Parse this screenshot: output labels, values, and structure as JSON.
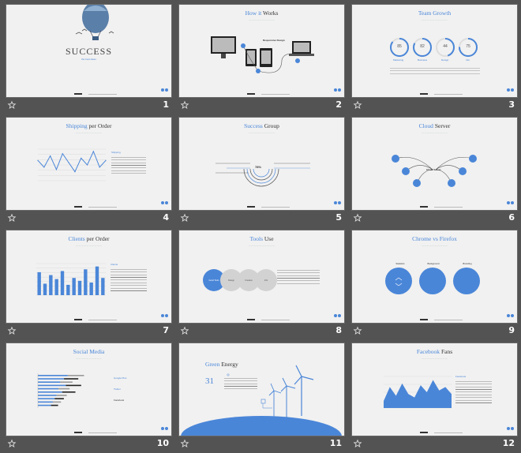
{
  "slides": [
    {
      "number": "1",
      "title": "SUCCESS",
      "tagline": "the best ideas"
    },
    {
      "number": "2",
      "title_a": "How ",
      "title_b": "it",
      "title_c": " Works",
      "label": "Responsive Design"
    },
    {
      "number": "3",
      "title_a": "Team ",
      "title_b": "Growth",
      "stats": [
        {
          "value": "85",
          "label": "Marketing"
        },
        {
          "value": "82",
          "label": "Business"
        },
        {
          "value": "44",
          "label": "Design"
        },
        {
          "value": "75",
          "label": "Info"
        }
      ]
    },
    {
      "number": "4",
      "title_a": "Shipping ",
      "title_b": "per Order",
      "side_title": "Shipping"
    },
    {
      "number": "5",
      "title_a": "Success ",
      "title_b": "Group",
      "center": "78%"
    },
    {
      "number": "6",
      "title_a": "Cloud ",
      "title_b": "Server",
      "label": "Cloud Server"
    },
    {
      "number": "7",
      "title_a": "Clients ",
      "title_b": "per Order",
      "side_title": "Clients"
    },
    {
      "number": "8",
      "title_a": "Tools ",
      "title_b": "Use",
      "circles": [
        "Good Tools",
        "Design",
        "Creative",
        "Info"
      ]
    },
    {
      "number": "9",
      "title_a": "Chrome ",
      "title_b": "vs",
      "title_c": " Firefox",
      "heads": [
        "Statistics",
        "Background",
        "Branding"
      ]
    },
    {
      "number": "10",
      "title_a": "Social ",
      "title_b": "Media",
      "notes": [
        "Google Plus",
        "Twitter",
        "Facebook"
      ]
    },
    {
      "number": "11",
      "title_a": "Green ",
      "title_b": "Energy",
      "value": "31"
    },
    {
      "number": "12",
      "title_a": "Facebook ",
      "title_b": "Fans",
      "side_title": "Facebook"
    }
  ],
  "chart_data": [
    {
      "type": "line",
      "slide": "4",
      "title": "",
      "y": [
        45,
        30,
        55,
        25,
        60,
        40,
        20,
        50,
        35,
        65,
        30,
        45
      ]
    },
    {
      "type": "bar",
      "slide": "7",
      "title": "",
      "values": [
        40,
        20,
        35,
        28,
        42,
        18,
        30,
        25,
        45,
        22,
        50,
        30
      ]
    },
    {
      "type": "bar",
      "slide": "10",
      "orientation": "horizontal",
      "title": "",
      "values": [
        80,
        70,
        60,
        75,
        55,
        65,
        50,
        45,
        40,
        35
      ]
    },
    {
      "type": "area",
      "slide": "12",
      "title": "",
      "y": [
        20,
        60,
        35,
        70,
        40,
        30,
        65,
        45,
        80,
        50,
        60,
        40
      ]
    }
  ],
  "colors": {
    "accent": "#4a86d8",
    "slide": "#f1f1f1",
    "background": "#535353"
  },
  "icons": {
    "bar": "star-icon"
  }
}
